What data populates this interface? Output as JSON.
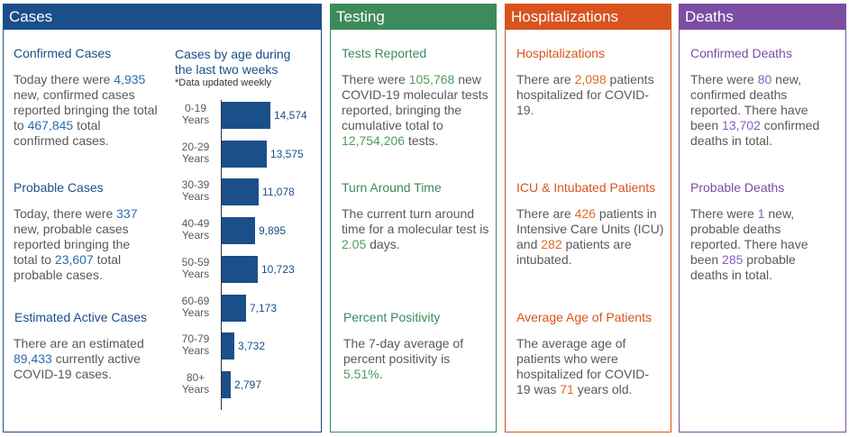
{
  "cases": {
    "title": "Cases",
    "confirmed": {
      "heading": "Confirmed Cases",
      "t1": "Today there were ",
      "new_count": "4,935",
      "t2": " new, confirmed cases reported bringing the total to ",
      "total": "467,845",
      "t3": " total confirmed cases."
    },
    "probable": {
      "heading": "Probable Cases",
      "t1": "Today, there were ",
      "new_count": "337",
      "t2": " new, probable cases reported bringing the total to ",
      "total": "23,607",
      "t3": " total probable cases."
    },
    "active": {
      "heading": "Estimated Active Cases",
      "t1": "There are an estimated ",
      "count": "89,433",
      "t2": " currently active COVID-19 cases."
    },
    "age_chart": {
      "title_line1": "Cases by age during",
      "title_line2": "the last two weeks",
      "note": "*Data updated weekly"
    }
  },
  "chart_data": {
    "type": "bar",
    "orientation": "horizontal",
    "title": "Cases by age during the last two weeks",
    "note": "*Data updated weekly",
    "categories": [
      "0-19 Years",
      "20-29 Years",
      "30-39 Years",
      "40-49 Years",
      "50-59 Years",
      "60-69 Years",
      "70-79 Years",
      "80+ Years"
    ],
    "category_lines": [
      [
        "0-19",
        "Years"
      ],
      [
        "20-29",
        "Years"
      ],
      [
        "30-39",
        "Years"
      ],
      [
        "40-49",
        "Years"
      ],
      [
        "50-59",
        "Years"
      ],
      [
        "60-69",
        "Years"
      ],
      [
        "70-79",
        "Years"
      ],
      [
        "80+",
        "Years"
      ]
    ],
    "values": [
      14574,
      13575,
      11078,
      9895,
      10723,
      7173,
      3732,
      2797
    ],
    "value_labels": [
      "14,574",
      "13,575",
      "11,078",
      "9,895",
      "10,723",
      "7,173",
      "3,732",
      "2,797"
    ],
    "xlim": [
      0,
      14574
    ]
  },
  "testing": {
    "title": "Testing",
    "reported": {
      "heading": "Tests Reported",
      "t1": "There were ",
      "count": "105,768",
      "t2": " new COVID-19 molecular tests reported, bringing the cumulative total to ",
      "total": "12,754,206",
      "t3": " tests."
    },
    "turnaround": {
      "heading": "Turn Around Time",
      "t1": "The current turn around time for a molecular test is ",
      "days": "2.05",
      "t2": " days."
    },
    "positivity": {
      "heading": "Percent Positivity",
      "t1": "The 7-day average of percent positivity is ",
      "pct": "5.51%",
      "t2": "."
    }
  },
  "hosp": {
    "title": "Hospitalizations",
    "hospitalized": {
      "heading": "Hospitalizations",
      "t1": "There are ",
      "count": "2,098",
      "t2": " patients hospitalized for COVID-19."
    },
    "icu": {
      "heading": "ICU & Intubated Patients",
      "t1": "There are ",
      "icu_count": "426",
      "t2": " patients in Intensive Care Units (ICU) and ",
      "intubated": "282",
      "t3": " patients are intubated."
    },
    "age": {
      "heading": "Average Age of Patients",
      "t1": "The average age of patients who were hospitalized for COVID-19 was ",
      "avg": "71",
      "t2": " years old."
    }
  },
  "deaths": {
    "title": "Deaths",
    "confirmed": {
      "heading": "Confirmed Deaths",
      "t1": "There were ",
      "new_count": "80",
      "t2": " new, confirmed deaths reported. There have been ",
      "total": "13,702",
      "t3": " confirmed deaths in total."
    },
    "probable": {
      "heading": "Probable Deaths",
      "t1": "There were ",
      "new_count": "1",
      "t2": " new, probable deaths reported. There have been ",
      "total": "285",
      "t3": " probable deaths in total."
    }
  }
}
